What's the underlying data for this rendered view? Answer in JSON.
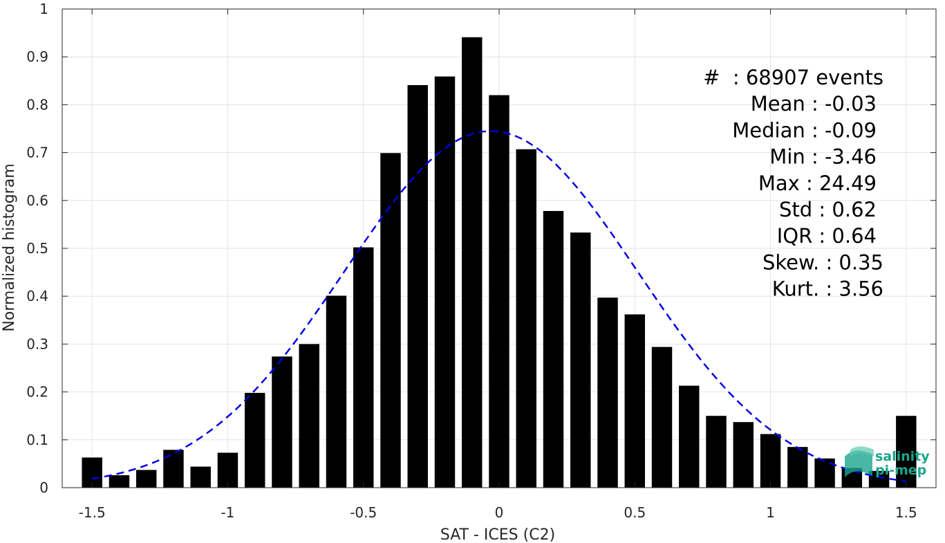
{
  "chart_data": {
    "type": "bar",
    "title": "",
    "xlabel": "SAT - ICES (C2)",
    "ylabel": "Normalized histogram",
    "xlim": [
      -1.61,
      1.61
    ],
    "ylim": [
      0,
      1
    ],
    "xticks": [
      -1.5,
      -1,
      -0.5,
      0,
      0.5,
      1,
      1.5
    ],
    "xtick_labels": [
      "-1.5",
      "-1",
      "-0.5",
      "0",
      "0.5",
      "1",
      "1.5"
    ],
    "yticks": [
      0,
      0.1,
      0.2,
      0.3,
      0.4,
      0.5,
      0.6,
      0.7,
      0.8,
      0.9,
      1
    ],
    "ytick_labels": [
      "0",
      "0.1",
      "0.2",
      "0.3",
      "0.4",
      "0.5",
      "0.6",
      "0.7",
      "0.8",
      "0.9",
      "1"
    ],
    "grid": true,
    "bar_color": "#000000",
    "bin_width": 0.1,
    "x": [
      -1.5,
      -1.4,
      -1.3,
      -1.2,
      -1.1,
      -1.0,
      -0.9,
      -0.8,
      -0.7,
      -0.6,
      -0.5,
      -0.4,
      -0.3,
      -0.2,
      -0.1,
      0.0,
      0.1,
      0.2,
      0.3,
      0.4,
      0.5,
      0.6,
      0.7,
      0.8,
      0.9,
      1.0,
      1.1,
      1.2,
      1.3,
      1.4,
      1.5
    ],
    "values": [
      0.063,
      0.026,
      0.037,
      0.079,
      0.044,
      0.073,
      0.198,
      0.274,
      0.3,
      0.401,
      0.502,
      0.699,
      0.841,
      0.859,
      0.941,
      0.82,
      0.707,
      0.578,
      0.533,
      0.397,
      0.362,
      0.294,
      0.213,
      0.15,
      0.137,
      0.112,
      0.085,
      0.061,
      0.041,
      0.035,
      0.15
    ],
    "fit_curve": {
      "type": "gaussian",
      "color": "#0000e6",
      "style": "dashed",
      "mean": -0.03,
      "std": 0.54,
      "peak": 0.745,
      "x_range": [
        -1.5,
        1.5
      ]
    },
    "annotations": [
      "#  : 68907 events",
      "Mean : -0.03",
      "Median : -0.09",
      "Min : -3.46",
      "Max : 24.49",
      "Std : 0.62",
      "IQR : 0.64",
      "Skew. : 0.35",
      "Kurt. : 3.56"
    ]
  },
  "logo": {
    "line1": "salinity",
    "line2": "pi-mep",
    "color": "#1aa58c"
  }
}
